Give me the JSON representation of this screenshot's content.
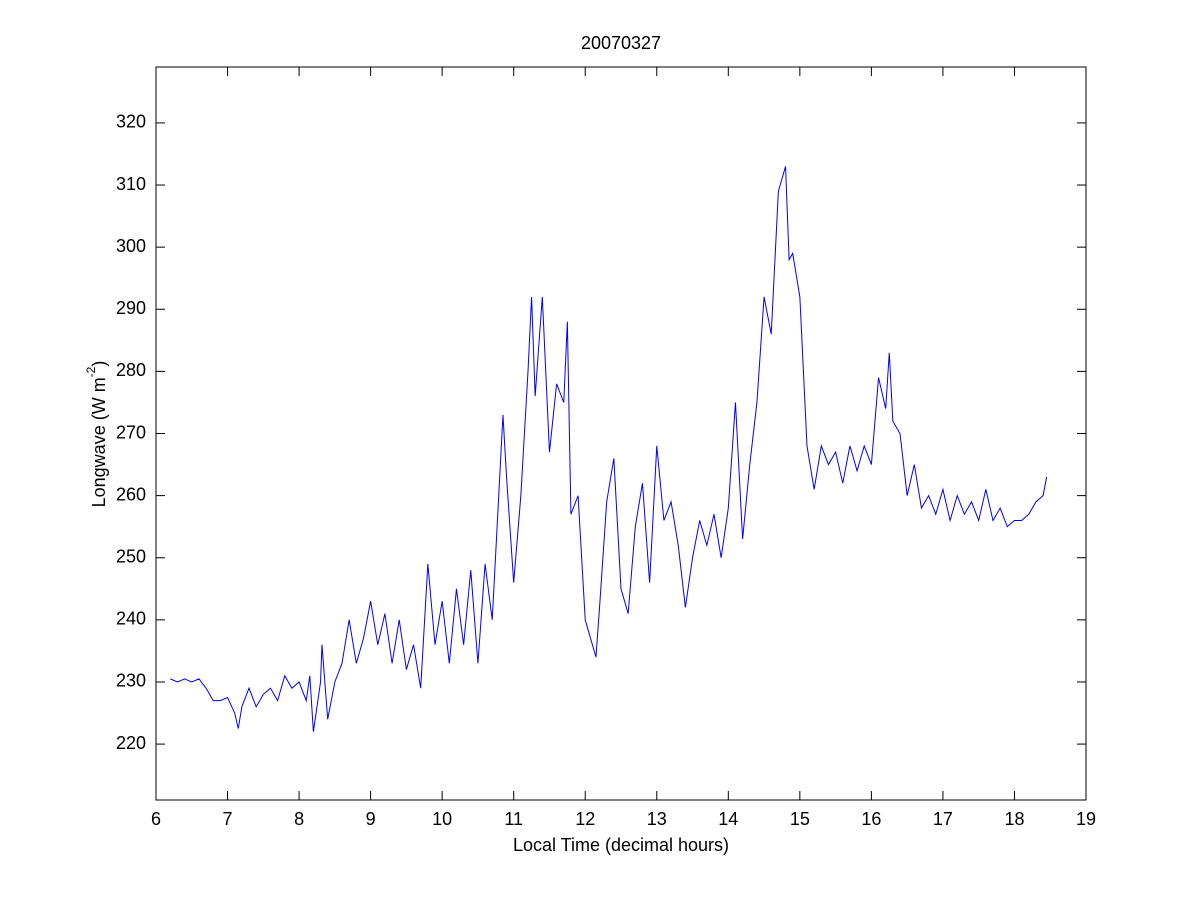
{
  "chart_data": {
    "type": "line",
    "title": "20070327",
    "xlabel": "Local Time (decimal hours)",
    "ylabel": {
      "text": "Longwave (W m",
      "superscript": "-2",
      "suffix": ")"
    },
    "xlim": [
      6,
      19
    ],
    "xticks": [
      6,
      7,
      8,
      9,
      10,
      11,
      12,
      13,
      14,
      15,
      16,
      17,
      18,
      19
    ],
    "ylim": [
      211,
      329
    ],
    "yticks": [
      220,
      230,
      240,
      250,
      260,
      270,
      280,
      290,
      300,
      310,
      320
    ],
    "grid": false,
    "x": [
      6.2,
      6.3,
      6.4,
      6.5,
      6.6,
      6.7,
      6.8,
      6.9,
      7.0,
      7.1,
      7.15,
      7.2,
      7.3,
      7.4,
      7.5,
      7.6,
      7.7,
      7.8,
      7.9,
      8.0,
      8.1,
      8.15,
      8.2,
      8.3,
      8.32,
      8.4,
      8.5,
      8.6,
      8.7,
      8.8,
      8.9,
      9.0,
      9.1,
      9.2,
      9.3,
      9.4,
      9.5,
      9.6,
      9.7,
      9.8,
      9.9,
      10.0,
      10.1,
      10.2,
      10.3,
      10.4,
      10.5,
      10.6,
      10.7,
      10.8,
      10.85,
      10.9,
      11.0,
      11.1,
      11.2,
      11.25,
      11.3,
      11.4,
      11.5,
      11.6,
      11.7,
      11.75,
      11.8,
      11.9,
      12.0,
      12.1,
      12.15,
      12.2,
      12.3,
      12.4,
      12.5,
      12.6,
      12.7,
      12.8,
      12.9,
      13.0,
      13.1,
      13.2,
      13.3,
      13.4,
      13.5,
      13.6,
      13.7,
      13.8,
      13.9,
      14.0,
      14.1,
      14.2,
      14.3,
      14.4,
      14.5,
      14.6,
      14.7,
      14.8,
      14.85,
      14.9,
      15.0,
      15.1,
      15.2,
      15.3,
      15.4,
      15.5,
      15.6,
      15.7,
      15.8,
      15.9,
      16.0,
      16.1,
      16.2,
      16.25,
      16.3,
      16.4,
      16.5,
      16.6,
      16.7,
      16.8,
      16.9,
      17.0,
      17.1,
      17.2,
      17.3,
      17.4,
      17.5,
      17.6,
      17.7,
      17.8,
      17.9,
      18.0,
      18.1,
      18.2,
      18.3,
      18.4,
      18.45
    ],
    "series": [
      {
        "color": "#0000ff",
        "values": [
          230.5,
          230,
          230.5,
          230,
          230.5,
          229,
          227,
          227,
          227.5,
          225,
          222.5,
          226,
          229,
          226,
          228,
          229,
          227,
          231,
          229,
          230,
          227,
          231,
          222,
          230,
          236,
          224,
          230,
          233,
          240,
          233,
          237,
          243,
          236,
          241,
          233,
          240,
          232,
          236,
          229,
          249,
          236,
          243,
          233,
          245,
          236,
          248,
          233,
          249,
          240,
          262,
          273,
          263,
          246,
          260,
          280,
          292,
          276,
          292,
          267,
          278,
          275,
          288,
          257,
          260,
          240,
          236,
          234,
          242,
          259,
          266,
          245,
          241,
          255,
          262,
          246,
          268,
          256,
          259,
          252,
          242,
          250,
          256,
          252,
          257,
          250,
          258,
          275,
          253,
          265,
          275,
          292,
          286,
          309,
          313,
          298,
          299,
          292,
          268,
          261,
          268,
          265,
          267,
          262,
          268,
          264,
          268,
          265,
          279,
          274,
          283,
          272,
          270,
          260,
          265,
          258,
          260,
          257,
          261,
          256,
          260,
          257,
          259,
          256,
          261,
          256,
          258,
          255,
          256,
          256,
          257,
          259,
          260,
          263
        ]
      }
    ]
  }
}
